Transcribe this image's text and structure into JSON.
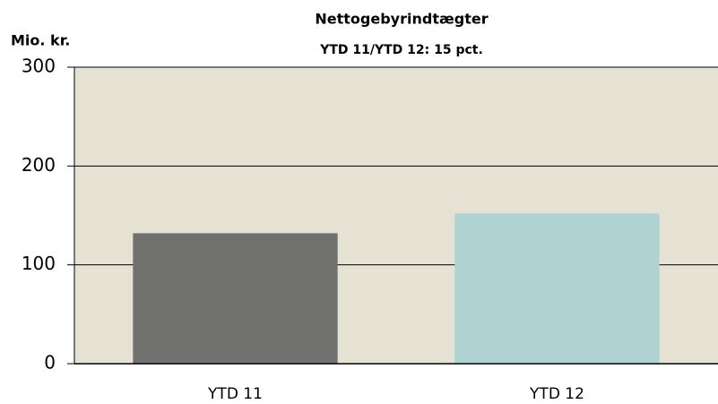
{
  "chart_data": {
    "type": "bar",
    "title": "Nettogebyrindtægter",
    "subtitle": "YTD 11/YTD 12: 15 pct.",
    "y_label": "Mio. kr.",
    "categories": [
      "YTD 11",
      "YTD 12"
    ],
    "values": [
      132,
      152
    ],
    "colors": [
      "#717270",
      "#afd3d3"
    ],
    "ylim": [
      0,
      300
    ],
    "yticks": [
      0,
      100,
      200,
      300
    ],
    "grid": true,
    "background": "#e6e2d3"
  }
}
